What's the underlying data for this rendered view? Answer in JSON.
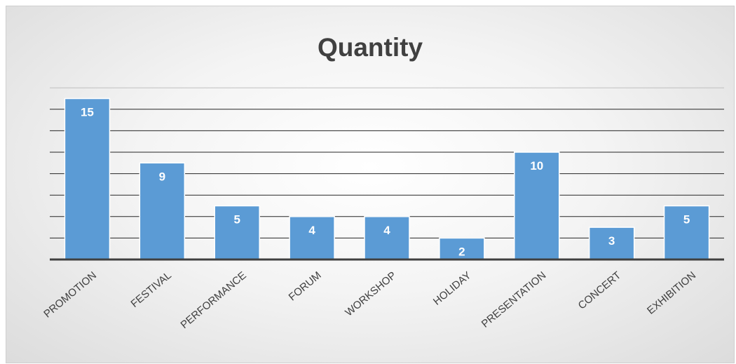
{
  "chart_data": {
    "type": "bar",
    "title": "Quantity",
    "xlabel": "",
    "ylabel": "",
    "categories": [
      "PROMOTION",
      "FESTIVAL",
      "PERFORMANCE",
      "FORUM",
      "WORKSHOP",
      "HOLIDAY",
      "PRESENTATION",
      "CONCERT",
      "EXHIBITION"
    ],
    "values": [
      15,
      9,
      5,
      4,
      4,
      2,
      10,
      3,
      5
    ],
    "ylim": [
      0,
      16
    ],
    "y_axis_labels": false,
    "grid": true,
    "legend": "none",
    "data_labels": true,
    "x_tick_rotation": "diagonal",
    "colors": {
      "bar": "#5b9bd5",
      "bar_outline": "#ffffff",
      "gridline": "#262626",
      "axis": "#404040",
      "title": "#404040",
      "data_label": "#ffffff"
    }
  }
}
